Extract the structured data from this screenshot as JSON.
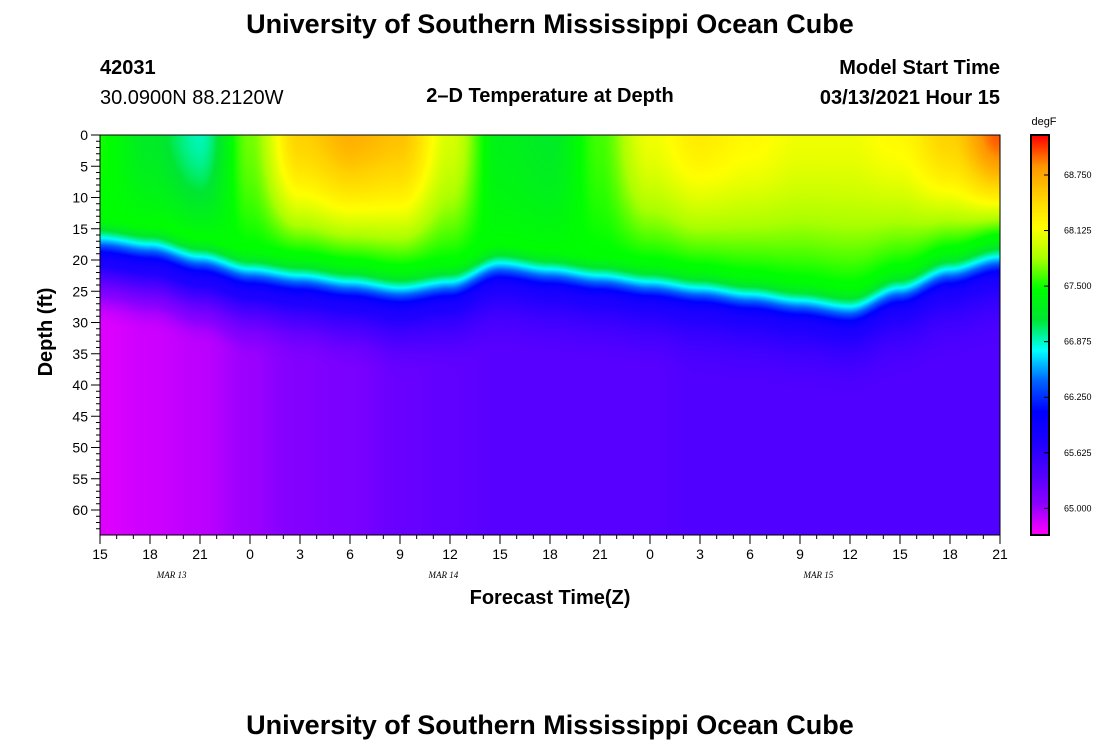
{
  "header": {
    "title_top": "University of Southern Mississippi Ocean Cube",
    "title_bottom": "University of Southern Mississippi Ocean Cube",
    "station_id": "42031",
    "station_coords": "30.0900N 88.2120W",
    "plot_title": "2–D Temperature at Depth",
    "model_label": "Model Start Time",
    "model_time": "03/13/2021 Hour 15"
  },
  "colors": {
    "ramp": [
      "#ff00ff",
      "#8c00ff",
      "#5000ff",
      "#1e00ff",
      "#0000ff",
      "#0064ff",
      "#00ffff",
      "#00e632",
      "#00ff00",
      "#aaff00",
      "#ffff00",
      "#ffd200",
      "#ff9600",
      "#ff0000"
    ]
  },
  "chart_data": {
    "type": "heatmap",
    "title": "2–D Temperature at Depth",
    "xlabel": "Forecast Time(Z)",
    "ylabel": "Depth (ft)",
    "x_hours": [
      0,
      3,
      6,
      9,
      12,
      15,
      18,
      21,
      24,
      27,
      30,
      33,
      36,
      39,
      42,
      45,
      48,
      51,
      54
    ],
    "xtick_labels": [
      "15",
      "18",
      "21",
      "0",
      "3",
      "6",
      "9",
      "12",
      "15",
      "18",
      "21",
      "0",
      "3",
      "6",
      "9",
      "12",
      "15",
      "18",
      "21"
    ],
    "date_labels": [
      {
        "label": "MAR 13",
        "hour": 4.3
      },
      {
        "label": "MAR 14",
        "hour": 20.6
      },
      {
        "label": "MAR 15",
        "hour": 43.1
      }
    ],
    "ylim": [
      0,
      64
    ],
    "yticks": [
      0,
      5,
      10,
      15,
      20,
      25,
      30,
      35,
      40,
      45,
      50,
      55,
      60
    ],
    "ytick_labels": [
      "0",
      "5",
      "10",
      "15",
      "20",
      "25",
      "30",
      "35",
      "40",
      "45",
      "50",
      "55",
      "60"
    ],
    "colorbar": {
      "unit": "degF",
      "range": [
        64.7,
        69.2
      ],
      "tick_values": [
        65.0,
        65.625,
        66.25,
        66.875,
        67.5,
        68.125,
        68.75
      ],
      "tick_labels": [
        "65.000",
        "65.625",
        "66.250",
        "66.875",
        "67.500",
        "68.125",
        "68.750"
      ]
    },
    "surface_temp_degF": [
      67.5,
      67.2,
      66.9,
      67.7,
      68.5,
      68.7,
      68.6,
      68.0,
      67.3,
      67.2,
      67.6,
      68.1,
      68.3,
      68.2,
      68.1,
      68.1,
      68.2,
      68.5,
      69.0
    ],
    "thermocline_depth_ft": [
      19,
      20,
      22,
      24,
      25,
      26,
      27,
      26,
      23,
      24,
      25,
      26,
      27,
      28,
      29,
      30,
      27,
      24,
      22
    ],
    "deep_temp_degF": [
      64.8,
      64.85,
      64.9,
      65.0,
      65.1,
      65.15,
      65.25,
      65.3,
      65.35,
      65.35,
      65.35,
      65.35,
      65.4,
      65.4,
      65.4,
      65.4,
      65.4,
      65.4,
      65.4
    ]
  }
}
